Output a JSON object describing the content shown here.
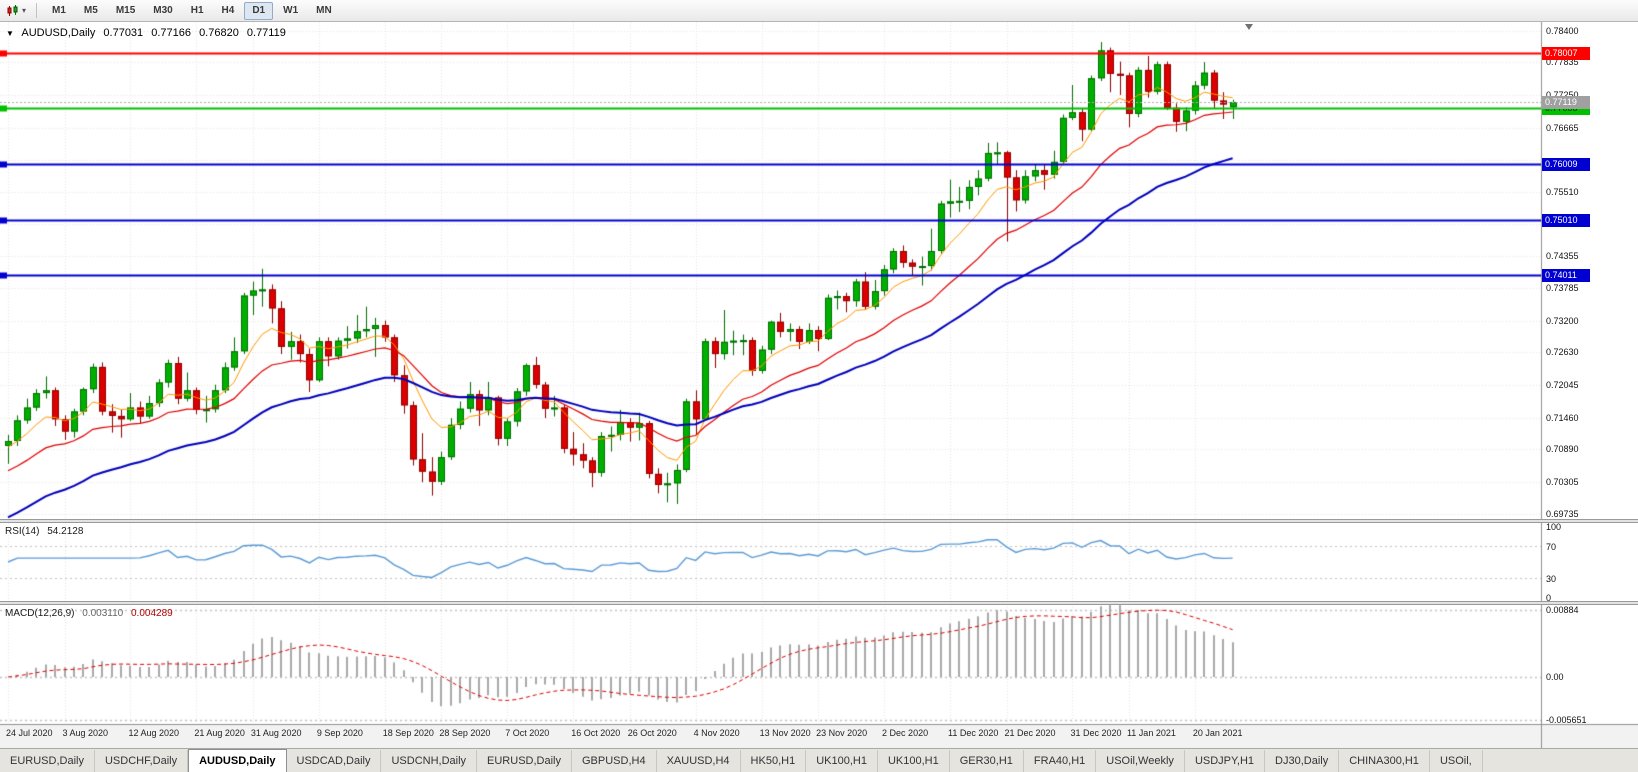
{
  "toolbar": {
    "timeframes": [
      {
        "label": "M1",
        "active": false
      },
      {
        "label": "M5",
        "active": false
      },
      {
        "label": "M15",
        "active": false
      },
      {
        "label": "M30",
        "active": false
      },
      {
        "label": "H1",
        "active": false
      },
      {
        "label": "H4",
        "active": false
      },
      {
        "label": "D1",
        "active": true
      },
      {
        "label": "W1",
        "active": false
      },
      {
        "label": "MN",
        "active": false
      }
    ]
  },
  "header": {
    "collapse_icon": "▼",
    "symbol": "AUDUSD,Daily",
    "open": "0.77031",
    "high": "0.77166",
    "low": "0.76820",
    "close": "0.77119"
  },
  "price_axis": {
    "labels": [
      "0.78400",
      "0.77835",
      "0.77250",
      "0.76665",
      "0.76080",
      "0.75510",
      "0.74940",
      "0.74355",
      "0.73785",
      "0.73200",
      "0.72630",
      "0.72045",
      "0.71460",
      "0.70890",
      "0.70305",
      "0.69735"
    ]
  },
  "hlines": [
    {
      "price": 0.78007,
      "label": "0.78007",
      "color": "#ff0000",
      "text": "#ffffff",
      "width": 2
    },
    {
      "price": 0.77008,
      "label": "0.77008",
      "color": "#00c000",
      "text": "#003300",
      "width": 2
    },
    {
      "price": 0.76009,
      "label": "0.76009",
      "color": "#0000d0",
      "text": "#ffffff",
      "width": 2
    },
    {
      "price": 0.7501,
      "label": "0.75010",
      "color": "#0000d0",
      "text": "#ffffff",
      "width": 2
    },
    {
      "price": 0.74011,
      "label": "0.74011",
      "color": "#0000d0",
      "text": "#ffffff",
      "width": 2
    }
  ],
  "bid": {
    "price": 0.77119,
    "label": "0.77119",
    "color": "#a0a0a0",
    "text": "#ffffff"
  },
  "rsi": {
    "name": "RSI(14)",
    "value": "54.2128",
    "period": 14,
    "color": "#5b9bd5",
    "range": [
      0,
      100
    ],
    "levels": [
      {
        "v": 100,
        "label": "100"
      },
      {
        "v": 70,
        "label": "70"
      },
      {
        "v": 30,
        "label": "30"
      },
      {
        "v": 0,
        "label": "0"
      }
    ]
  },
  "macd": {
    "name": "MACD(12,26,9)",
    "main_value": "0.003110",
    "signal_value": "0.004289",
    "fast": 12,
    "slow": 26,
    "signal": 9,
    "bar_color": "#aaaaaa",
    "signal_color": "#dd0000",
    "range": [
      -0.0062,
      0.0095
    ],
    "axis": [
      {
        "v": 0.00884,
        "label": "0.00884"
      },
      {
        "v": 0,
        "label": "0.00"
      },
      {
        "v": -0.005651,
        "label": "-0.005651"
      }
    ]
  },
  "tabs": [
    {
      "label": "EURUSD,Daily",
      "active": false
    },
    {
      "label": "USDCHF,Daily",
      "active": false
    },
    {
      "label": "AUDUSD,Daily",
      "active": true
    },
    {
      "label": "USDCAD,Daily",
      "active": false
    },
    {
      "label": "USDCNH,Daily",
      "active": false
    },
    {
      "label": "EURUSD,Daily",
      "active": false
    },
    {
      "label": "GBPUSD,H4",
      "active": false
    },
    {
      "label": "XAUUSD,H4",
      "active": false
    },
    {
      "label": "HK50,H1",
      "active": false
    },
    {
      "label": "UK100,H1",
      "active": false
    },
    {
      "label": "UK100,H1",
      "active": false
    },
    {
      "label": "GER30,H1",
      "active": false
    },
    {
      "label": "FRA40,H1",
      "active": false
    },
    {
      "label": "USOil,Weekly",
      "active": false
    },
    {
      "label": "USDJPY,H1",
      "active": false
    },
    {
      "label": "DJ30,Daily",
      "active": false
    },
    {
      "label": "CHINA300,H1",
      "active": false
    },
    {
      "label": "USOil,",
      "active": false
    }
  ],
  "colors": {
    "bull": "#00b000",
    "bull_border": "#006e00",
    "bear": "#dd0000",
    "bear_border": "#8e0000",
    "grid": "#e8e8e8",
    "level": "#c4c4c4",
    "bg": "#ffffff",
    "axis_line": "#8f8f8f",
    "bid_line": "#b0b0b0"
  },
  "chart_data": {
    "type": "candlestick",
    "symbol": "AUDUSD",
    "timeframe": "Daily",
    "price_range": [
      0.6964,
      0.7856
    ],
    "x_labels": [
      {
        "t": "24 Jul 2020",
        "i": 0
      },
      {
        "t": "3 Aug 2020",
        "i": 6
      },
      {
        "t": "12 Aug 2020",
        "i": 13
      },
      {
        "t": "21 Aug 2020",
        "i": 20
      },
      {
        "t": "31 Aug 2020",
        "i": 26
      },
      {
        "t": "9 Sep 2020",
        "i": 33
      },
      {
        "t": "18 Sep 2020",
        "i": 40
      },
      {
        "t": "28 Sep 2020",
        "i": 46
      },
      {
        "t": "7 Oct 2020",
        "i": 53
      },
      {
        "t": "16 Oct 2020",
        "i": 60
      },
      {
        "t": "26 Oct 2020",
        "i": 66
      },
      {
        "t": "4 Nov 2020",
        "i": 73
      },
      {
        "t": "13 Nov 2020",
        "i": 80
      },
      {
        "t": "23 Nov 2020",
        "i": 86
      },
      {
        "t": "2 Dec 2020",
        "i": 93
      },
      {
        "t": "11 Dec 2020",
        "i": 100
      },
      {
        "t": "21 Dec 2020",
        "i": 106
      },
      {
        "t": "31 Dec 2020",
        "i": 113
      },
      {
        "t": "11 Jan 2021",
        "i": 119
      },
      {
        "t": "20 Jan 2021",
        "i": 126
      }
    ],
    "moving_averages": [
      {
        "type": "ema",
        "period": 8,
        "color": "#ff9900",
        "width": 1,
        "seed": 0.709
      },
      {
        "type": "ema",
        "period": 20,
        "color": "#e00000",
        "width": 1.2,
        "seed": 0.7045
      },
      {
        "type": "ema",
        "period": 40,
        "color": "#0000bb",
        "width": 2,
        "seed": 0.696
      }
    ],
    "candles": [
      [
        0.7095,
        0.7115,
        0.7063,
        0.7104
      ],
      [
        0.7104,
        0.715,
        0.7095,
        0.7141
      ],
      [
        0.7141,
        0.718,
        0.7135,
        0.7164
      ],
      [
        0.7164,
        0.7197,
        0.7158,
        0.719
      ],
      [
        0.719,
        0.722,
        0.718,
        0.7195
      ],
      [
        0.7195,
        0.72,
        0.7131,
        0.7143
      ],
      [
        0.7143,
        0.715,
        0.7106,
        0.7121
      ],
      [
        0.7121,
        0.7162,
        0.711,
        0.7157
      ],
      [
        0.7157,
        0.72,
        0.715,
        0.7197
      ],
      [
        0.7197,
        0.7243,
        0.719,
        0.7237
      ],
      [
        0.7237,
        0.7245,
        0.715,
        0.7157
      ],
      [
        0.7157,
        0.717,
        0.7119,
        0.7149
      ],
      [
        0.7149,
        0.716,
        0.711,
        0.7143
      ],
      [
        0.7143,
        0.719,
        0.714,
        0.7164
      ],
      [
        0.7164,
        0.7175,
        0.7135,
        0.7148
      ],
      [
        0.7148,
        0.7185,
        0.7144,
        0.7172
      ],
      [
        0.7172,
        0.7215,
        0.7165,
        0.7209
      ],
      [
        0.7209,
        0.725,
        0.72,
        0.7244
      ],
      [
        0.7244,
        0.7255,
        0.717,
        0.718
      ],
      [
        0.718,
        0.7227,
        0.7175,
        0.7195
      ],
      [
        0.7195,
        0.72,
        0.7152,
        0.716
      ],
      [
        0.716,
        0.7185,
        0.7137,
        0.7161
      ],
      [
        0.7161,
        0.7205,
        0.7155,
        0.7195
      ],
      [
        0.7195,
        0.7245,
        0.719,
        0.7236
      ],
      [
        0.7236,
        0.729,
        0.723,
        0.7265
      ],
      [
        0.7265,
        0.737,
        0.726,
        0.7365
      ],
      [
        0.7365,
        0.739,
        0.733,
        0.7374
      ],
      [
        0.7374,
        0.7413,
        0.7345,
        0.7376
      ],
      [
        0.7376,
        0.7385,
        0.7315,
        0.7342
      ],
      [
        0.7342,
        0.7355,
        0.726,
        0.7273
      ],
      [
        0.7273,
        0.73,
        0.725,
        0.7283
      ],
      [
        0.7283,
        0.7295,
        0.7245,
        0.726
      ],
      [
        0.726,
        0.727,
        0.7192,
        0.7213
      ],
      [
        0.7213,
        0.729,
        0.721,
        0.7283
      ],
      [
        0.7283,
        0.729,
        0.7238,
        0.7256
      ],
      [
        0.7256,
        0.729,
        0.725,
        0.7284
      ],
      [
        0.7284,
        0.731,
        0.727,
        0.7288
      ],
      [
        0.7288,
        0.733,
        0.728,
        0.7301
      ],
      [
        0.7301,
        0.7345,
        0.729,
        0.7305
      ],
      [
        0.7305,
        0.7325,
        0.7255,
        0.7312
      ],
      [
        0.7312,
        0.732,
        0.7282,
        0.729
      ],
      [
        0.729,
        0.7295,
        0.721,
        0.7222
      ],
      [
        0.7222,
        0.724,
        0.7153,
        0.7168
      ],
      [
        0.7168,
        0.7175,
        0.706,
        0.7071
      ],
      [
        0.7071,
        0.7118,
        0.703,
        0.7049
      ],
      [
        0.7049,
        0.7075,
        0.7006,
        0.7031
      ],
      [
        0.7031,
        0.7085,
        0.7025,
        0.7075
      ],
      [
        0.7075,
        0.7145,
        0.707,
        0.7133
      ],
      [
        0.7133,
        0.7175,
        0.7125,
        0.7162
      ],
      [
        0.7162,
        0.721,
        0.7155,
        0.7188
      ],
      [
        0.7188,
        0.7195,
        0.7131,
        0.7159
      ],
      [
        0.7159,
        0.721,
        0.715,
        0.7182
      ],
      [
        0.7182,
        0.7185,
        0.7096,
        0.7108
      ],
      [
        0.7108,
        0.7145,
        0.7095,
        0.7139
      ],
      [
        0.7139,
        0.7199,
        0.713,
        0.7193
      ],
      [
        0.7193,
        0.7243,
        0.7185,
        0.724
      ],
      [
        0.724,
        0.7255,
        0.7198,
        0.7205
      ],
      [
        0.7205,
        0.721,
        0.7145,
        0.7162
      ],
      [
        0.7162,
        0.7185,
        0.7148,
        0.7164
      ],
      [
        0.7164,
        0.717,
        0.7082,
        0.709
      ],
      [
        0.709,
        0.712,
        0.706,
        0.708
      ],
      [
        0.708,
        0.71,
        0.7055,
        0.7069
      ],
      [
        0.7069,
        0.7075,
        0.7021,
        0.7047
      ],
      [
        0.7047,
        0.712,
        0.704,
        0.7113
      ],
      [
        0.7113,
        0.713,
        0.7085,
        0.7115
      ],
      [
        0.7115,
        0.716,
        0.7105,
        0.7138
      ],
      [
        0.7138,
        0.7145,
        0.7103,
        0.7128
      ],
      [
        0.7128,
        0.7155,
        0.7105,
        0.7136
      ],
      [
        0.7136,
        0.714,
        0.7037,
        0.7045
      ],
      [
        0.7045,
        0.7055,
        0.701,
        0.7025
      ],
      [
        0.7025,
        0.7047,
        0.6994,
        0.7028
      ],
      [
        0.7028,
        0.7062,
        0.6991,
        0.7052
      ],
      [
        0.7052,
        0.718,
        0.7048,
        0.7175
      ],
      [
        0.7175,
        0.7195,
        0.7115,
        0.7143
      ],
      [
        0.7143,
        0.7288,
        0.714,
        0.7283
      ],
      [
        0.7283,
        0.729,
        0.7235,
        0.726
      ],
      [
        0.726,
        0.7339,
        0.725,
        0.7282
      ],
      [
        0.7282,
        0.7302,
        0.7258,
        0.7284
      ],
      [
        0.7284,
        0.7295,
        0.7258,
        0.7285
      ],
      [
        0.7285,
        0.729,
        0.7221,
        0.723
      ],
      [
        0.723,
        0.7275,
        0.7225,
        0.7268
      ],
      [
        0.7268,
        0.732,
        0.726,
        0.7318
      ],
      [
        0.7318,
        0.7334,
        0.729,
        0.73
      ],
      [
        0.73,
        0.7315,
        0.7283,
        0.7305
      ],
      [
        0.7305,
        0.731,
        0.7269,
        0.7282
      ],
      [
        0.7282,
        0.7315,
        0.7278,
        0.7303
      ],
      [
        0.7303,
        0.731,
        0.7265,
        0.7287
      ],
      [
        0.7287,
        0.7367,
        0.7285,
        0.7361
      ],
      [
        0.7361,
        0.7374,
        0.734,
        0.7364
      ],
      [
        0.7364,
        0.737,
        0.7335,
        0.7355
      ],
      [
        0.7355,
        0.7395,
        0.7345,
        0.739
      ],
      [
        0.739,
        0.7407,
        0.7339,
        0.7345
      ],
      [
        0.7345,
        0.7393,
        0.734,
        0.7373
      ],
      [
        0.7373,
        0.742,
        0.7365,
        0.7412
      ],
      [
        0.7412,
        0.745,
        0.7405,
        0.7445
      ],
      [
        0.7445,
        0.7455,
        0.7415,
        0.7424
      ],
      [
        0.7424,
        0.743,
        0.74,
        0.7417
      ],
      [
        0.7417,
        0.7435,
        0.7383,
        0.7418
      ],
      [
        0.7418,
        0.7485,
        0.741,
        0.7445
      ],
      [
        0.7445,
        0.7535,
        0.744,
        0.753
      ],
      [
        0.753,
        0.7573,
        0.7505,
        0.7534
      ],
      [
        0.7534,
        0.756,
        0.7515,
        0.7535
      ],
      [
        0.7535,
        0.7572,
        0.752,
        0.756
      ],
      [
        0.756,
        0.759,
        0.7545,
        0.7575
      ],
      [
        0.7575,
        0.7639,
        0.757,
        0.7621
      ],
      [
        0.7621,
        0.764,
        0.76,
        0.7622
      ],
      [
        0.7622,
        0.7625,
        0.7462,
        0.7577
      ],
      [
        0.7577,
        0.759,
        0.7516,
        0.7536
      ],
      [
        0.7536,
        0.759,
        0.753,
        0.7579
      ],
      [
        0.7579,
        0.76,
        0.757,
        0.759
      ],
      [
        0.759,
        0.76,
        0.7555,
        0.7582
      ],
      [
        0.7582,
        0.7625,
        0.7575,
        0.7605
      ],
      [
        0.7605,
        0.769,
        0.76,
        0.7684
      ],
      [
        0.7684,
        0.7743,
        0.768,
        0.7694
      ],
      [
        0.7694,
        0.77,
        0.7642,
        0.7663
      ],
      [
        0.7663,
        0.776,
        0.766,
        0.7755
      ],
      [
        0.7755,
        0.782,
        0.775,
        0.7805
      ],
      [
        0.7805,
        0.781,
        0.773,
        0.7763
      ],
      [
        0.7763,
        0.7785,
        0.7725,
        0.776
      ],
      [
        0.776,
        0.7765,
        0.7667,
        0.7691
      ],
      [
        0.7691,
        0.7775,
        0.7685,
        0.777
      ],
      [
        0.777,
        0.7795,
        0.772,
        0.7731
      ],
      [
        0.7731,
        0.7785,
        0.7726,
        0.778
      ],
      [
        0.778,
        0.7785,
        0.7698,
        0.7702
      ],
      [
        0.7702,
        0.771,
        0.7659,
        0.7677
      ],
      [
        0.7677,
        0.7703,
        0.766,
        0.7697
      ],
      [
        0.7697,
        0.775,
        0.769,
        0.7742
      ],
      [
        0.7742,
        0.7784,
        0.7735,
        0.7765
      ],
      [
        0.7765,
        0.777,
        0.77,
        0.7715
      ],
      [
        0.7715,
        0.773,
        0.7682,
        0.7708
      ],
      [
        0.77031,
        0.77166,
        0.7682,
        0.77119
      ]
    ]
  }
}
